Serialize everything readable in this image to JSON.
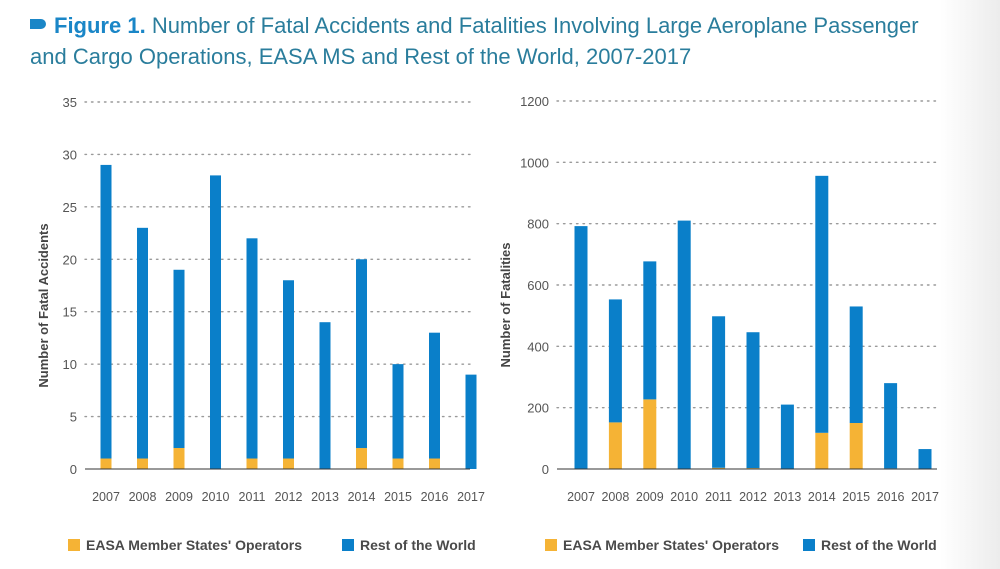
{
  "title": {
    "label": "Figure 1.",
    "text": "Number of Fatal Accidents and Fatalities Involving Large Aeroplane Passenger and Cargo Operations, EASA MS and Rest of the World, 2007-2017"
  },
  "colors": {
    "easa": "#f5b335",
    "row": "#0a7fc9",
    "grid": "#9a9a9a",
    "axis": "#333333"
  },
  "chart_data": [
    {
      "type": "bar",
      "stacked": true,
      "title": "",
      "xlabel": "",
      "ylabel": "Number of Fatal Accidents",
      "ylim": [
        0,
        35
      ],
      "yticks": [
        0,
        5,
        10,
        15,
        20,
        25,
        30,
        35
      ],
      "grid": true,
      "legend_position": "bottom",
      "categories": [
        "2007",
        "2008",
        "2009",
        "2010",
        "2011",
        "2012",
        "2013",
        "2014",
        "2015",
        "2016",
        "2017"
      ],
      "series": [
        {
          "name": "EASA Member States' Operators",
          "values": [
            1,
            1,
            2,
            0,
            1,
            1,
            0,
            2,
            1,
            1,
            0
          ]
        },
        {
          "name": "Rest of the World",
          "values": [
            28,
            22,
            17,
            28,
            21,
            17,
            14,
            18,
            9,
            12,
            9
          ]
        }
      ]
    },
    {
      "type": "bar",
      "stacked": true,
      "title": "",
      "xlabel": "",
      "ylabel": "Number of Fatalities",
      "ylim": [
        0,
        1200
      ],
      "yticks": [
        0,
        200,
        400,
        600,
        800,
        1000,
        1200
      ],
      "grid": true,
      "legend_position": "bottom",
      "categories": [
        "2007",
        "2008",
        "2009",
        "2010",
        "2011",
        "2012",
        "2013",
        "2014",
        "2015",
        "2016",
        "2017"
      ],
      "series": [
        {
          "name": "EASA Member States' Operators",
          "values": [
            0,
            152,
            227,
            0,
            4,
            3,
            0,
            118,
            150,
            2,
            0
          ]
        },
        {
          "name": "Rest of the World",
          "values": [
            792,
            401,
            450,
            810,
            494,
            443,
            210,
            838,
            380,
            278,
            65
          ]
        }
      ]
    }
  ]
}
